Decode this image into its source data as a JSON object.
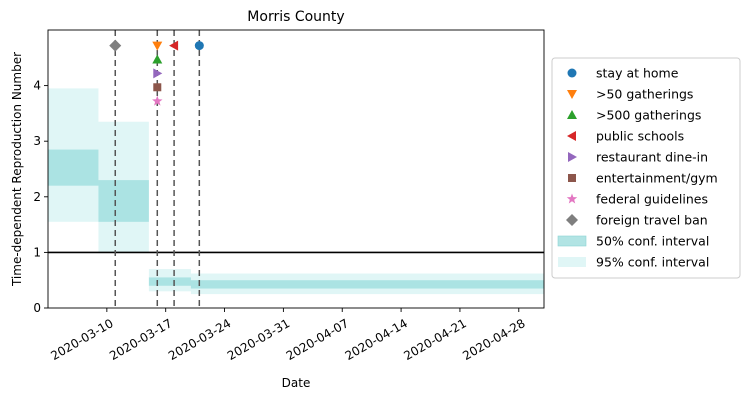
{
  "chart_data": {
    "type": "step-area",
    "title": "Morris County",
    "xlabel": "Date",
    "ylabel": "Time-dependent Reproduction Number",
    "xlim": [
      "2020-03-03",
      "2020-05-01"
    ],
    "ylim": [
      0,
      5
    ],
    "x_ticks": [
      "2020-03-10",
      "2020-03-17",
      "2020-03-24",
      "2020-03-31",
      "2020-04-07",
      "2020-04-14",
      "2020-04-21",
      "2020-04-28"
    ],
    "y_ticks": [
      0,
      1,
      2,
      3,
      4
    ],
    "reference_line": 1,
    "ci_steps": [
      {
        "start": "2020-03-03",
        "end": "2020-03-09",
        "ci50": [
          2.2,
          2.85
        ],
        "ci95": [
          1.55,
          3.95
        ]
      },
      {
        "start": "2020-03-09",
        "end": "2020-03-15",
        "ci50": [
          1.55,
          2.3
        ],
        "ci95": [
          1.0,
          3.35
        ]
      },
      {
        "start": "2020-03-15",
        "end": "2020-03-20",
        "ci50": [
          0.4,
          0.55
        ],
        "ci95": [
          0.3,
          0.7
        ]
      },
      {
        "start": "2020-03-20",
        "end": "2020-05-01",
        "ci50": [
          0.35,
          0.5
        ],
        "ci95": [
          0.25,
          0.62
        ]
      }
    ],
    "interventions": [
      {
        "name": "stay at home",
        "date": "2020-03-21",
        "y": 4.72,
        "marker": "circle",
        "color": "#1f77b4"
      },
      {
        "name": ">50 gatherings",
        "date": "2020-03-16",
        "y": 4.72,
        "marker": "triangle-down",
        "color": "#ff7f0e"
      },
      {
        "name": ">500 gatherings",
        "date": "2020-03-16",
        "y": 4.47,
        "marker": "triangle-up",
        "color": "#2ca02c"
      },
      {
        "name": "public schools",
        "date": "2020-03-18",
        "y": 4.72,
        "marker": "triangle-left",
        "color": "#d62728"
      },
      {
        "name": "restaurant dine-in",
        "date": "2020-03-16",
        "y": 4.22,
        "marker": "triangle-right",
        "color": "#9467bd"
      },
      {
        "name": "entertainment/gym",
        "date": "2020-03-16",
        "y": 3.97,
        "marker": "square",
        "color": "#8c564b"
      },
      {
        "name": "federal guidelines",
        "date": "2020-03-16",
        "y": 3.72,
        "marker": "star",
        "color": "#e377c2"
      },
      {
        "name": "foreign travel ban",
        "date": "2020-03-11",
        "y": 4.72,
        "marker": "diamond",
        "color": "#7f7f7f"
      }
    ],
    "vlines": [
      "2020-03-11",
      "2020-03-16",
      "2020-03-18",
      "2020-03-21"
    ],
    "legend_extra": [
      "50% conf. interval",
      "95% conf. interval"
    ],
    "legend_position": "right",
    "colors": {
      "ci50": "#7fd3d3",
      "ci95": "#c6eeee",
      "ci50_edge": "#3fb8b8"
    }
  }
}
